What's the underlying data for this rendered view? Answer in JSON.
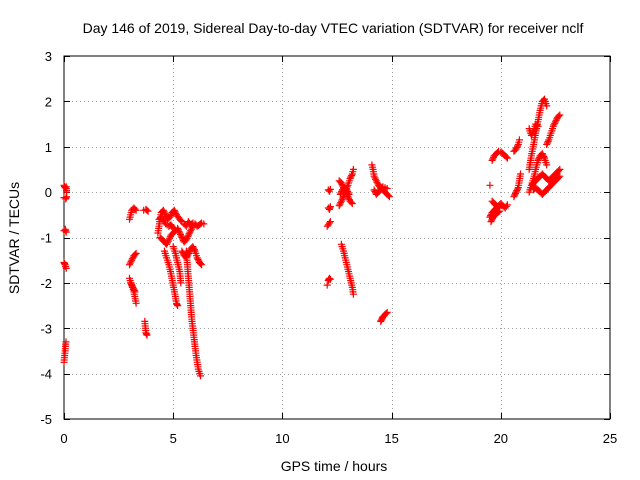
{
  "chart_data": {
    "type": "scatter",
    "title": "Day 146 of 2019, Sidereal Day-to-day VTEC variation (SDTVAR) for receiver nclf",
    "xlabel": "GPS time / hours",
    "ylabel": "SDTVAR / TECUs",
    "xlim": [
      0,
      25
    ],
    "ylim": [
      -5,
      3
    ],
    "xticks": [
      0,
      5,
      10,
      15,
      20,
      25
    ],
    "yticks": [
      -5,
      -4,
      -3,
      -2,
      -1,
      0,
      1,
      2,
      3
    ],
    "xtick_labels": [
      "0",
      "5",
      "10",
      "15",
      "20",
      "25"
    ],
    "ytick_labels": [
      "-5",
      "-4",
      "-3",
      "-2",
      "-1",
      "0",
      "1",
      "2",
      "3"
    ],
    "grid": true,
    "marker": "+",
    "color": "#ff0000",
    "segments": [
      [
        [
          0.0,
          0.15
        ],
        [
          0.05,
          0.1
        ],
        [
          0.1,
          0.12
        ],
        [
          0.12,
          0.0
        ]
      ],
      [
        [
          0.0,
          -0.12
        ],
        [
          0.08,
          -0.15
        ],
        [
          0.12,
          -0.1
        ]
      ],
      [
        [
          0.0,
          -0.85
        ],
        [
          0.06,
          -0.82
        ],
        [
          0.1,
          -0.88
        ]
      ],
      [
        [
          0.0,
          -1.55
        ],
        [
          0.05,
          -1.6
        ],
        [
          0.1,
          -1.68
        ]
      ],
      [
        [
          0.0,
          -3.75
        ],
        [
          0.03,
          -3.6
        ],
        [
          0.06,
          -3.45
        ],
        [
          0.09,
          -3.3
        ]
      ],
      [
        [
          3.0,
          -0.6
        ],
        [
          3.05,
          -0.5
        ],
        [
          3.1,
          -0.4
        ],
        [
          3.2,
          -0.35
        ],
        [
          3.3,
          -0.4
        ]
      ],
      [
        [
          3.0,
          -1.6
        ],
        [
          3.1,
          -1.5
        ],
        [
          3.2,
          -1.4
        ],
        [
          3.3,
          -1.35
        ]
      ],
      [
        [
          3.0,
          -1.9
        ],
        [
          3.1,
          -2.05
        ],
        [
          3.2,
          -2.2
        ],
        [
          3.3,
          -2.45
        ]
      ],
      [
        [
          3.05,
          -2.0
        ],
        [
          3.15,
          -2.1
        ],
        [
          3.25,
          -2.2
        ]
      ],
      [
        [
          3.65,
          -0.4
        ],
        [
          3.75,
          -0.38
        ],
        [
          3.85,
          -0.42
        ]
      ],
      [
        [
          3.7,
          -2.85
        ],
        [
          3.75,
          -3.1
        ],
        [
          3.8,
          -3.15
        ]
      ],
      [
        [
          4.3,
          -0.9
        ],
        [
          4.35,
          -0.75
        ],
        [
          4.4,
          -0.6
        ],
        [
          4.45,
          -0.45
        ],
        [
          4.55,
          -0.4
        ],
        [
          4.65,
          -0.5
        ],
        [
          4.75,
          -0.6
        ],
        [
          4.85,
          -0.55
        ],
        [
          4.95,
          -0.45
        ],
        [
          5.05,
          -0.4
        ],
        [
          5.15,
          -0.5
        ],
        [
          5.3,
          -0.6
        ],
        [
          5.4,
          -0.65
        ]
      ],
      [
        [
          4.35,
          -0.6
        ],
        [
          4.45,
          -0.55
        ],
        [
          4.55,
          -0.62
        ],
        [
          4.65,
          -0.7
        ],
        [
          4.8,
          -0.75
        ],
        [
          4.9,
          -0.72
        ],
        [
          5.0,
          -0.78
        ],
        [
          5.1,
          -0.85
        ]
      ],
      [
        [
          4.4,
          -1.0
        ],
        [
          4.5,
          -1.05
        ],
        [
          4.6,
          -1.1
        ],
        [
          4.7,
          -1.15
        ],
        [
          4.8,
          -1.05
        ],
        [
          4.9,
          -0.95
        ],
        [
          5.0,
          -0.9
        ],
        [
          5.1,
          -0.85
        ]
      ],
      [
        [
          4.6,
          -1.3
        ],
        [
          4.7,
          -1.45
        ],
        [
          4.8,
          -1.6
        ],
        [
          4.9,
          -1.8
        ],
        [
          5.0,
          -2.05
        ],
        [
          5.1,
          -2.3
        ],
        [
          5.15,
          -2.45
        ],
        [
          5.2,
          -2.5
        ]
      ],
      [
        [
          5.0,
          -1.2
        ],
        [
          5.1,
          -1.35
        ],
        [
          5.2,
          -1.55
        ],
        [
          5.3,
          -1.75
        ],
        [
          5.35,
          -2.0
        ]
      ],
      [
        [
          5.2,
          -0.8
        ],
        [
          5.3,
          -0.9
        ],
        [
          5.4,
          -1.0
        ],
        [
          5.5,
          -1.1
        ],
        [
          5.6,
          -1.05
        ],
        [
          5.7,
          -0.95
        ],
        [
          5.8,
          -0.85
        ],
        [
          5.9,
          -0.75
        ]
      ],
      [
        [
          5.4,
          -1.3
        ],
        [
          5.5,
          -1.4
        ],
        [
          5.6,
          -1.45
        ],
        [
          5.7,
          -1.35
        ],
        [
          5.8,
          -1.25
        ],
        [
          5.9,
          -1.2
        ],
        [
          6.0,
          -1.3
        ],
        [
          6.1,
          -1.45
        ],
        [
          6.2,
          -1.55
        ],
        [
          6.3,
          -1.6
        ]
      ],
      [
        [
          5.5,
          -0.7
        ],
        [
          5.6,
          -0.75
        ],
        [
          5.7,
          -0.65
        ],
        [
          5.8,
          -0.72
        ],
        [
          5.9,
          -0.68
        ],
        [
          6.0,
          -0.7
        ],
        [
          6.1,
          -0.75
        ],
        [
          6.2,
          -0.72
        ],
        [
          6.3,
          -0.68
        ],
        [
          6.4,
          -0.7
        ]
      ],
      [
        [
          5.6,
          -1.3
        ],
        [
          5.65,
          -1.6
        ],
        [
          5.7,
          -1.9
        ],
        [
          5.75,
          -2.2
        ],
        [
          5.8,
          -2.5
        ],
        [
          5.85,
          -2.8
        ],
        [
          5.9,
          -3.0
        ],
        [
          5.95,
          -3.2
        ],
        [
          6.0,
          -3.4
        ],
        [
          6.05,
          -3.6
        ],
        [
          6.1,
          -3.75
        ],
        [
          6.15,
          -3.9
        ],
        [
          6.25,
          -4.05
        ]
      ],
      [
        [
          12.1,
          0.05
        ],
        [
          12.15,
          0.02
        ],
        [
          12.2,
          0.06
        ]
      ],
      [
        [
          12.1,
          -0.35
        ],
        [
          12.15,
          -0.38
        ],
        [
          12.2,
          -0.32
        ]
      ],
      [
        [
          12.05,
          -0.75
        ],
        [
          12.1,
          -0.72
        ],
        [
          12.15,
          -0.68
        ],
        [
          12.2,
          -0.65
        ]
      ],
      [
        [
          12.1,
          -1.95
        ],
        [
          12.15,
          -1.9
        ],
        [
          12.2,
          -1.92
        ]
      ],
      [
        [
          12.05,
          -2.05
        ]
      ],
      [
        [
          12.6,
          0.25
        ],
        [
          12.7,
          0.2
        ],
        [
          12.8,
          0.1
        ],
        [
          12.9,
          0.0
        ],
        [
          13.0,
          -0.1
        ],
        [
          13.1,
          -0.2
        ],
        [
          13.2,
          -0.25
        ]
      ],
      [
        [
          12.6,
          -0.3
        ],
        [
          12.7,
          -0.2
        ],
        [
          12.8,
          -0.1
        ],
        [
          12.9,
          0.05
        ],
        [
          13.0,
          0.15
        ],
        [
          13.1,
          0.3
        ],
        [
          13.2,
          0.4
        ],
        [
          13.25,
          0.5
        ]
      ],
      [
        [
          12.65,
          -0.05
        ],
        [
          12.75,
          0.05
        ],
        [
          12.85,
          0.1
        ],
        [
          12.95,
          0.05
        ],
        [
          13.05,
          -0.05
        ]
      ],
      [
        [
          12.7,
          -1.15
        ],
        [
          12.8,
          -1.3
        ],
        [
          12.9,
          -1.5
        ],
        [
          13.0,
          -1.7
        ],
        [
          13.1,
          -1.9
        ],
        [
          13.2,
          -2.1
        ],
        [
          13.25,
          -2.25
        ]
      ],
      [
        [
          14.1,
          0.6
        ],
        [
          14.15,
          0.5
        ],
        [
          14.2,
          0.35
        ],
        [
          14.3,
          0.25
        ],
        [
          14.4,
          0.15
        ],
        [
          14.5,
          0.1
        ],
        [
          14.6,
          0.05
        ],
        [
          14.7,
          0.0
        ],
        [
          14.8,
          -0.05
        ],
        [
          14.9,
          -0.1
        ]
      ],
      [
        [
          14.2,
          0.05
        ],
        [
          14.3,
          -0.05
        ],
        [
          14.4,
          0.0
        ],
        [
          14.5,
          0.08
        ],
        [
          14.6,
          0.12
        ],
        [
          14.7,
          0.1
        ],
        [
          14.8,
          0.08
        ]
      ],
      [
        [
          14.5,
          -2.85
        ],
        [
          14.55,
          -2.8
        ],
        [
          14.6,
          -2.75
        ],
        [
          14.7,
          -2.7
        ],
        [
          14.8,
          -2.65
        ]
      ],
      [
        [
          19.5,
          0.15
        ]
      ],
      [
        [
          19.6,
          0.7
        ],
        [
          19.7,
          0.8
        ],
        [
          19.8,
          0.85
        ],
        [
          19.9,
          0.9
        ],
        [
          20.0,
          0.88
        ],
        [
          20.1,
          0.85
        ],
        [
          20.2,
          0.8
        ],
        [
          20.3,
          0.75
        ]
      ],
      [
        [
          19.5,
          -0.55
        ],
        [
          19.6,
          -0.45
        ],
        [
          19.7,
          -0.4
        ],
        [
          19.8,
          -0.35
        ],
        [
          19.9,
          -0.3
        ],
        [
          20.0,
          -0.25
        ],
        [
          20.1,
          -0.3
        ],
        [
          20.2,
          -0.35
        ],
        [
          20.3,
          -0.28
        ]
      ],
      [
        [
          19.55,
          -0.65
        ],
        [
          19.65,
          -0.55
        ],
        [
          19.75,
          -0.5
        ],
        [
          19.85,
          -0.45
        ],
        [
          19.95,
          -0.42
        ]
      ],
      [
        [
          19.6,
          -0.2
        ],
        [
          19.7,
          -0.25
        ],
        [
          19.8,
          -0.3
        ],
        [
          19.9,
          -0.35
        ]
      ],
      [
        [
          20.6,
          -0.1
        ],
        [
          20.7,
          0.0
        ],
        [
          20.8,
          0.1
        ],
        [
          20.85,
          0.25
        ],
        [
          20.9,
          0.4
        ]
      ],
      [
        [
          20.6,
          0.9
        ],
        [
          20.7,
          0.95
        ],
        [
          20.8,
          1.05
        ],
        [
          20.85,
          1.15
        ]
      ],
      [
        [
          21.3,
          0.5
        ],
        [
          21.4,
          0.8
        ],
        [
          21.5,
          1.05
        ],
        [
          21.6,
          1.3
        ],
        [
          21.7,
          1.55
        ],
        [
          21.8,
          1.8
        ],
        [
          21.9,
          2.0
        ],
        [
          22.0,
          2.05
        ],
        [
          22.1,
          1.9
        ]
      ],
      [
        [
          21.3,
          1.4
        ],
        [
          21.4,
          1.25
        ],
        [
          21.5,
          1.35
        ],
        [
          21.6,
          1.5
        ],
        [
          21.7,
          1.45
        ]
      ],
      [
        [
          21.3,
          0.0
        ],
        [
          21.4,
          0.15
        ],
        [
          21.5,
          0.3
        ],
        [
          21.6,
          0.5
        ],
        [
          21.7,
          0.7
        ],
        [
          21.8,
          0.8
        ],
        [
          21.9,
          0.85
        ],
        [
          22.0,
          0.75
        ],
        [
          22.1,
          0.6
        ]
      ],
      [
        [
          21.4,
          0.15
        ],
        [
          21.5,
          0.2
        ],
        [
          21.6,
          0.25
        ],
        [
          21.7,
          0.3
        ],
        [
          21.8,
          0.35
        ],
        [
          21.9,
          0.4
        ],
        [
          22.0,
          0.35
        ],
        [
          22.1,
          0.3
        ],
        [
          22.2,
          0.25
        ],
        [
          22.3,
          0.3
        ],
        [
          22.4,
          0.35
        ],
        [
          22.5,
          0.4
        ],
        [
          22.6,
          0.45
        ],
        [
          22.7,
          0.5
        ]
      ],
      [
        [
          21.5,
          0.05
        ],
        [
          21.6,
          0.1
        ],
        [
          21.7,
          0.05
        ],
        [
          21.8,
          0.0
        ],
        [
          21.9,
          -0.05
        ],
        [
          22.0,
          0.0
        ],
        [
          22.1,
          0.05
        ],
        [
          22.2,
          0.1
        ],
        [
          22.3,
          0.15
        ],
        [
          22.4,
          0.2
        ],
        [
          22.5,
          0.25
        ],
        [
          22.6,
          0.3
        ],
        [
          22.7,
          0.35
        ]
      ],
      [
        [
          22.1,
          1.05
        ],
        [
          22.2,
          1.15
        ],
        [
          22.3,
          1.3
        ],
        [
          22.4,
          1.45
        ],
        [
          22.5,
          1.55
        ],
        [
          22.6,
          1.65
        ],
        [
          22.7,
          1.7
        ]
      ]
    ]
  }
}
